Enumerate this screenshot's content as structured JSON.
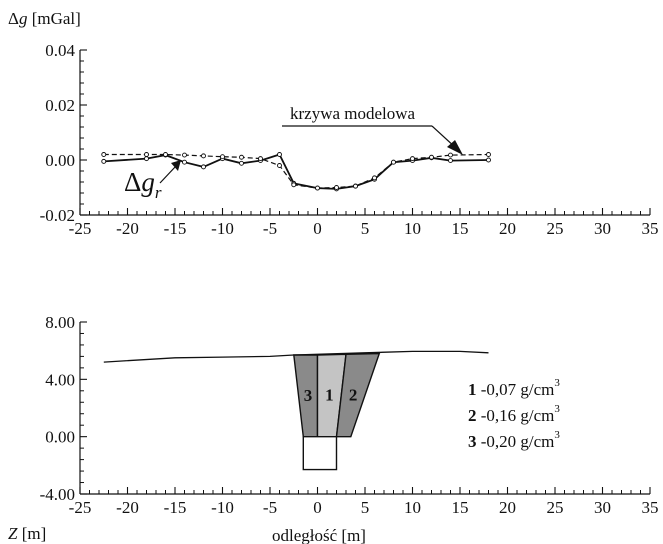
{
  "chart_data": [
    {
      "type": "line",
      "ylabel": "Δg [mGal]",
      "ylabel_parts": {
        "prefix": "Δ",
        "var": "g",
        "unit": "[mGal]"
      },
      "xlim": [
        -25,
        35
      ],
      "ylim": [
        -0.02,
        0.04
      ],
      "x_ticks": [
        -25,
        -20,
        -15,
        -10,
        -5,
        0,
        5,
        10,
        15,
        20,
        25,
        30,
        35
      ],
      "y_ticks": [
        {
          "value": -0.02,
          "label": "-0.02"
        },
        {
          "value": 0.0,
          "label": "0.00"
        },
        {
          "value": 0.02,
          "label": "0.02"
        },
        {
          "value": 0.04,
          "label": "0.04"
        }
      ],
      "series": [
        {
          "name": "Δg_r",
          "label_parts": {
            "prefix": "Δ",
            "var": "g",
            "sub": "r"
          },
          "style": "solid",
          "x": [
            -22.5,
            -18,
            -16,
            -14,
            -12,
            -10,
            -8,
            -6,
            -4,
            -2.5,
            0,
            2,
            4,
            6,
            8,
            10,
            12,
            14,
            18
          ],
          "y": [
            -0.0005,
            0.0005,
            0.0018,
            -0.0008,
            -0.0025,
            0.0005,
            -0.0012,
            -0.0002,
            0.002,
            -0.0085,
            -0.0102,
            -0.0105,
            -0.0095,
            -0.007,
            -0.0008,
            -0.0002,
            0.0008,
            -0.0002,
            0.0
          ]
        },
        {
          "name": "krzywa modelowa",
          "style": "dashed",
          "x": [
            -22.5,
            -18,
            -16,
            -14,
            -12,
            -10,
            -8,
            -6,
            -4,
            -2.5,
            0,
            2,
            4,
            6,
            8,
            10,
            12,
            14,
            18
          ],
          "y": [
            0.002,
            0.002,
            0.002,
            0.0018,
            0.0015,
            0.0012,
            0.001,
            0.0005,
            -0.002,
            -0.009,
            -0.0102,
            -0.01,
            -0.0095,
            -0.0065,
            -0.0008,
            0.0005,
            0.001,
            0.0018,
            0.002
          ]
        }
      ],
      "annotations": {
        "model_curve_label": "krzywa modelowa"
      }
    },
    {
      "type": "area",
      "ylabel": "Z [m]",
      "ylabel_parts": {
        "var": "Z",
        "unit": "[m]"
      },
      "xlabel": "odległość [m]",
      "xlim": [
        -25,
        35
      ],
      "ylim": [
        -4,
        8
      ],
      "x_ticks": [
        -25,
        -20,
        -15,
        -10,
        -5,
        0,
        5,
        10,
        15,
        20,
        25,
        30,
        35
      ],
      "y_ticks": [
        {
          "value": -4,
          "label": "-4.00"
        },
        {
          "value": 0,
          "label": "0.00"
        },
        {
          "value": 4,
          "label": "4.00"
        },
        {
          "value": 8,
          "label": "8.00"
        }
      ],
      "surface": {
        "x": [
          -22.5,
          -15,
          -10,
          -5,
          -2.5,
          0,
          5,
          10,
          15,
          18
        ],
        "y": [
          5.2,
          5.5,
          5.55,
          5.6,
          5.7,
          5.75,
          5.85,
          5.95,
          5.95,
          5.85
        ]
      },
      "bodies": [
        {
          "id": "3",
          "label": "3",
          "color": "#8a8a8a",
          "polygon": [
            [
              -2.5,
              5.7
            ],
            [
              0.0,
              5.7
            ],
            [
              0.0,
              0.0
            ],
            [
              -1.5,
              0.0
            ]
          ]
        },
        {
          "id": "1",
          "label": "1",
          "color": "#c4c4c4",
          "polygon": [
            [
              0.0,
              5.7
            ],
            [
              3.0,
              5.75
            ],
            [
              2.0,
              0.0
            ],
            [
              0.0,
              0.0
            ]
          ]
        },
        {
          "id": "2",
          "label": "2",
          "color": "#8a8a8a",
          "polygon": [
            [
              3.0,
              5.75
            ],
            [
              6.5,
              5.8
            ],
            [
              3.5,
              0.0
            ],
            [
              2.0,
              0.0
            ]
          ]
        },
        {
          "id": "void",
          "label": "",
          "color": "#ffffff",
          "polygon": [
            [
              -1.5,
              0.0
            ],
            [
              2.0,
              0.0
            ],
            [
              2.0,
              -2.3
            ],
            [
              -1.5,
              -2.3
            ]
          ]
        }
      ],
      "legend": [
        {
          "id": "1",
          "value": "-0,07 g/cm",
          "sup": "3"
        },
        {
          "id": "2",
          "value": "-0,16 g/cm",
          "sup": "3"
        },
        {
          "id": "3",
          "value": "-0,20 g/cm",
          "sup": "3"
        }
      ]
    }
  ]
}
